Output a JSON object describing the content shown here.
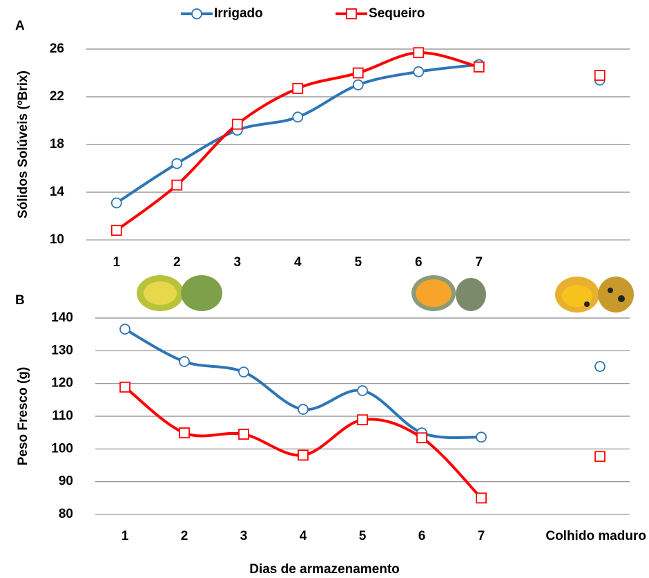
{
  "chart_data": [
    {
      "type": "line",
      "panel": "A",
      "ylabel": "Sólidos Solúveis (ºBrix)",
      "categories": [
        "1",
        "2",
        "3",
        "4",
        "5",
        "6",
        "7",
        null,
        null
      ],
      "series": [
        {
          "name": "Irrigado",
          "color": "#2e75b6",
          "marker": "circle",
          "values": [
            13.1,
            16.4,
            19.2,
            20.3,
            23.0,
            24.1,
            24.7,
            null,
            23.4
          ]
        },
        {
          "name": "Sequeiro",
          "color": "#ff0000",
          "marker": "square",
          "values": [
            10.8,
            14.6,
            19.7,
            22.7,
            24.0,
            25.7,
            24.5,
            null,
            23.8
          ]
        }
      ],
      "ylim": [
        10,
        26
      ],
      "yticks": [
        10,
        14,
        18,
        22,
        26
      ],
      "grid": true,
      "legend": "top"
    },
    {
      "type": "line",
      "panel": "B",
      "ylabel": "Peso Fresco (g)",
      "xlabel": "Dias de armazenamento",
      "categories": [
        "1",
        "2",
        "3",
        "4",
        "5",
        "6",
        "7",
        null,
        "Colhido maduro"
      ],
      "series": [
        {
          "name": "Irrigado",
          "color": "#2e75b6",
          "marker": "circle",
          "values": [
            136.6,
            126.7,
            123.5,
            112.1,
            117.8,
            104.9,
            103.6,
            null,
            125.2
          ]
        },
        {
          "name": "Sequeiro",
          "color": "#ff0000",
          "marker": "square",
          "values": [
            118.9,
            104.9,
            104.5,
            98.1,
            108.9,
            103.4,
            85.0,
            null,
            97.7
          ]
        }
      ],
      "ylim": [
        80,
        140
      ],
      "yticks": [
        80,
        90,
        100,
        110,
        120,
        130,
        140
      ],
      "grid": true
    }
  ]
}
